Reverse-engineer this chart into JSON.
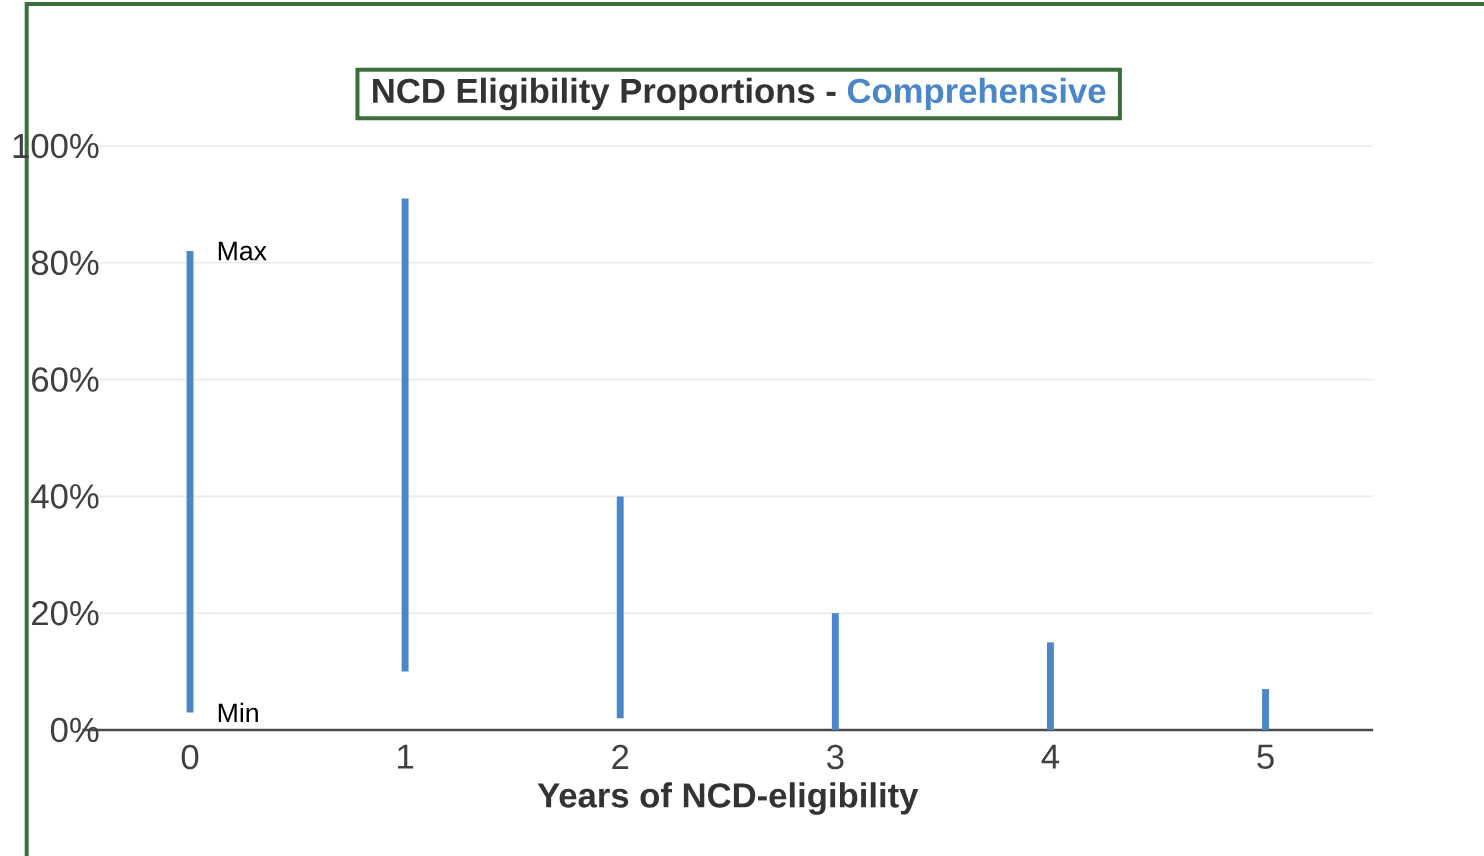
{
  "chart_data": {
    "type": "bar",
    "title": "NCD Eligibility Proportions -",
    "subtitle": "Comprehensive",
    "xlabel": "Years of NCD-eligibility",
    "categories": [
      "0",
      "1",
      "2",
      "3",
      "4",
      "5"
    ],
    "base": [
      3,
      10,
      2,
      0,
      0,
      0
    ],
    "values": [
      79,
      81,
      38,
      20,
      15,
      7
    ],
    "color": "#4a86c8",
    "ylim": [
      0,
      100
    ],
    "yticks": [
      {
        "value": 0,
        "label": "0%"
      },
      {
        "value": 20,
        "label": "20%"
      },
      {
        "value": 40,
        "label": "40%"
      },
      {
        "value": 60,
        "label": "60%"
      },
      {
        "value": 80,
        "label": "80%"
      },
      {
        "value": 100,
        "label": "100%"
      }
    ],
    "grid": "y",
    "annotations": [
      "Max",
      "Min"
    ]
  }
}
